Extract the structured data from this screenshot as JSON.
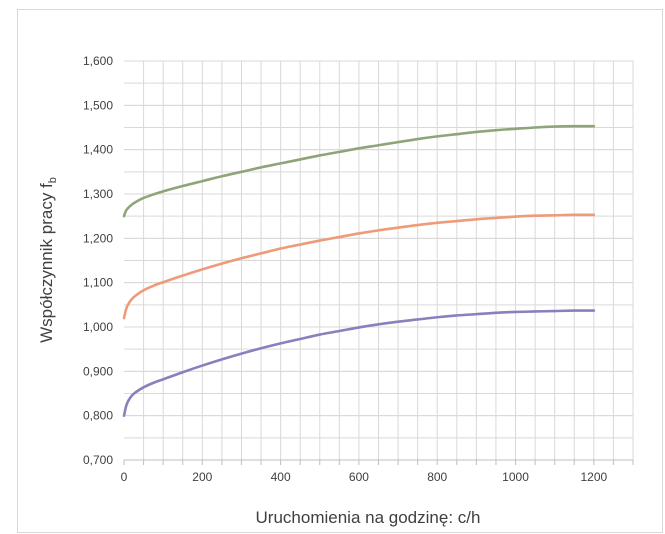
{
  "chart_data": {
    "type": "line",
    "title": "",
    "xlabel": "Uruchomienia na godzinę: c/h",
    "ylabel_main": "Współczynnik pracy f",
    "ylabel_sub": "b",
    "xlim": [
      0,
      1300
    ],
    "ylim": [
      0.7,
      1.6
    ],
    "x_ticks": [
      0,
      200,
      400,
      600,
      800,
      1000,
      1200
    ],
    "x_tick_labels": [
      "0",
      "200",
      "400",
      "600",
      "800",
      "1000",
      "1200"
    ],
    "x_minor_step": 50,
    "y_ticks": [
      0.7,
      0.8,
      0.9,
      1.0,
      1.1,
      1.2,
      1.3,
      1.4,
      1.5,
      1.6
    ],
    "y_tick_labels": [
      "0,700",
      "0,800",
      "0,900",
      "1,000",
      "1,100",
      "1,200",
      "1,300",
      "1,400",
      "1,500",
      "1,600"
    ],
    "y_minor_step": 0.05,
    "grid": true,
    "legend": "none",
    "colors": {
      "grid": "#d9d9d9",
      "axis": "#bfbfbf",
      "text": "#404040"
    },
    "series": [
      {
        "color": "#8ea57a",
        "x": [
          0,
          5,
          10,
          20,
          30,
          50,
          75,
          100,
          150,
          200,
          250,
          300,
          350,
          400,
          450,
          500,
          550,
          600,
          650,
          700,
          750,
          800,
          850,
          900,
          950,
          1000,
          1050,
          1100,
          1150,
          1200
        ],
        "values": [
          1.25,
          1.262,
          1.268,
          1.276,
          1.282,
          1.291,
          1.299,
          1.306,
          1.318,
          1.329,
          1.34,
          1.35,
          1.36,
          1.369,
          1.378,
          1.387,
          1.395,
          1.403,
          1.41,
          1.417,
          1.424,
          1.43,
          1.435,
          1.44,
          1.444,
          1.447,
          1.45,
          1.452,
          1.453,
          1.453
        ]
      },
      {
        "color": "#ef9a78",
        "x": [
          0,
          5,
          10,
          20,
          30,
          50,
          75,
          100,
          150,
          200,
          250,
          300,
          350,
          400,
          450,
          500,
          550,
          600,
          650,
          700,
          750,
          800,
          850,
          900,
          950,
          1000,
          1050,
          1100,
          1150,
          1200
        ],
        "values": [
          1.02,
          1.039,
          1.05,
          1.063,
          1.071,
          1.083,
          1.093,
          1.101,
          1.116,
          1.13,
          1.143,
          1.155,
          1.166,
          1.177,
          1.186,
          1.195,
          1.203,
          1.211,
          1.218,
          1.224,
          1.23,
          1.235,
          1.239,
          1.243,
          1.246,
          1.249,
          1.251,
          1.252,
          1.253,
          1.253
        ]
      },
      {
        "color": "#8b7fbe",
        "x": [
          0,
          5,
          10,
          20,
          30,
          50,
          75,
          100,
          150,
          200,
          250,
          300,
          350,
          400,
          450,
          500,
          550,
          600,
          650,
          700,
          750,
          800,
          850,
          900,
          950,
          1000,
          1050,
          1100,
          1150,
          1200
        ],
        "values": [
          0.8,
          0.82,
          0.832,
          0.845,
          0.853,
          0.864,
          0.874,
          0.882,
          0.898,
          0.913,
          0.927,
          0.94,
          0.952,
          0.963,
          0.973,
          0.983,
          0.991,
          0.999,
          1.006,
          1.012,
          1.017,
          1.022,
          1.026,
          1.029,
          1.032,
          1.034,
          1.035,
          1.036,
          1.037,
          1.037
        ]
      }
    ]
  }
}
